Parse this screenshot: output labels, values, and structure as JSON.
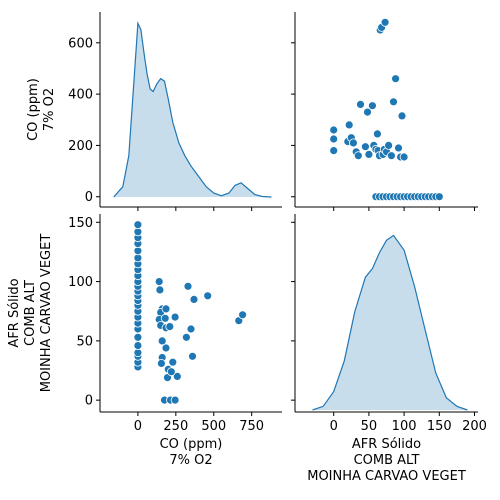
{
  "chart_data": {
    "type": "pairplot",
    "variables": [
      "CO (ppm)\n7% O2",
      "AFR Sólido\nCOMB ALT\nMOINHA CARVAO VEGET"
    ],
    "axes": {
      "co": {
        "range": [
          -250,
          950
        ],
        "ticks": [
          0,
          250,
          500,
          750
        ],
        "tick_labels": [
          "0",
          "",
          "",
          ""
        ]
      },
      "afr": {
        "range": [
          -55,
          205
        ],
        "ticks": [
          0,
          50,
          100,
          150,
          200
        ],
        "tick_labels": [
          "0",
          "50",
          "100",
          "150",
          "200"
        ]
      },
      "co_vertical": {
        "range": [
          -40,
          720
        ],
        "ticks": [
          0,
          200,
          400,
          600
        ],
        "tick_labels": [
          "0",
          "200",
          "400",
          "600"
        ]
      },
      "afr_vertical": {
        "range": [
          -10,
          157
        ],
        "ticks": [
          0,
          50,
          100,
          150
        ],
        "tick_labels": [
          "0",
          "50",
          "100",
          "150"
        ]
      }
    },
    "points": [
      {
        "co": 0,
        "afr": 28
      },
      {
        "co": 0,
        "afr": 32
      },
      {
        "co": 0,
        "afr": 37
      },
      {
        "co": 0,
        "afr": 40
      },
      {
        "co": 0,
        "afr": 46
      },
      {
        "co": 0,
        "afr": 53
      },
      {
        "co": 0,
        "afr": 60
      },
      {
        "co": 0,
        "afr": 65
      },
      {
        "co": 0,
        "afr": 70
      },
      {
        "co": 0,
        "afr": 75
      },
      {
        "co": 0,
        "afr": 80
      },
      {
        "co": 0,
        "afr": 84
      },
      {
        "co": 0,
        "afr": 88
      },
      {
        "co": 0,
        "afr": 92
      },
      {
        "co": 0,
        "afr": 96
      },
      {
        "co": 0,
        "afr": 100
      },
      {
        "co": 0,
        "afr": 105
      },
      {
        "co": 0,
        "afr": 110
      },
      {
        "co": 0,
        "afr": 115
      },
      {
        "co": 0,
        "afr": 120
      },
      {
        "co": 0,
        "afr": 126
      },
      {
        "co": 0,
        "afr": 132
      },
      {
        "co": 0,
        "afr": 137
      },
      {
        "co": 0,
        "afr": 142
      },
      {
        "co": 0,
        "afr": 148
      },
      {
        "co": 175,
        "afr": 0
      },
      {
        "co": 215,
        "afr": 0
      },
      {
        "co": 245,
        "afr": 0
      },
      {
        "co": 140,
        "afr": 100
      },
      {
        "co": 145,
        "afr": 93
      },
      {
        "co": 160,
        "afr": 77
      },
      {
        "co": 150,
        "afr": 74
      },
      {
        "co": 185,
        "afr": 77
      },
      {
        "co": 140,
        "afr": 68
      },
      {
        "co": 180,
        "afr": 69
      },
      {
        "co": 150,
        "afr": 63
      },
      {
        "co": 185,
        "afr": 61
      },
      {
        "co": 210,
        "afr": 62
      },
      {
        "co": 245,
        "afr": 70
      },
      {
        "co": 330,
        "afr": 96
      },
      {
        "co": 370,
        "afr": 85
      },
      {
        "co": 460,
        "afr": 88
      },
      {
        "co": 350,
        "afr": 60
      },
      {
        "co": 320,
        "afr": 53
      },
      {
        "co": 185,
        "afr": 44
      },
      {
        "co": 160,
        "afr": 36
      },
      {
        "co": 155,
        "afr": 31
      },
      {
        "co": 230,
        "afr": 32
      },
      {
        "co": 200,
        "afr": 26
      },
      {
        "co": 195,
        "afr": 19
      },
      {
        "co": 260,
        "afr": 20
      },
      {
        "co": 220,
        "afr": 24
      },
      {
        "co": 360,
        "afr": 37
      },
      {
        "co": 665,
        "afr": 67
      },
      {
        "co": 690,
        "afr": 72
      },
      {
        "co": 160,
        "afr": 50
      }
    ],
    "scatter_co_vs_afr": [
      {
        "afr": 0,
        "co": 180
      },
      {
        "afr": 0,
        "co": 225
      },
      {
        "afr": 0,
        "co": 260
      },
      {
        "afr": 20,
        "co": 215
      },
      {
        "afr": 22,
        "co": 280
      },
      {
        "afr": 25,
        "co": 230
      },
      {
        "afr": 28,
        "co": 210
      },
      {
        "afr": 32,
        "co": 175
      },
      {
        "afr": 35,
        "co": 160
      },
      {
        "afr": 38,
        "co": 360
      },
      {
        "afr": 45,
        "co": 195
      },
      {
        "afr": 48,
        "co": 330
      },
      {
        "afr": 50,
        "co": 165
      },
      {
        "afr": 55,
        "co": 355
      },
      {
        "afr": 57,
        "co": 200
      },
      {
        "afr": 60,
        "co": 185
      },
      {
        "afr": 62,
        "co": 245
      },
      {
        "afr": 63,
        "co": 180
      },
      {
        "afr": 65,
        "co": 160
      },
      {
        "afr": 66,
        "co": 650
      },
      {
        "afr": 68,
        "co": 660
      },
      {
        "afr": 70,
        "co": 165
      },
      {
        "afr": 72,
        "co": 185
      },
      {
        "afr": 73,
        "co": 680
      },
      {
        "afr": 75,
        "co": 175
      },
      {
        "afr": 78,
        "co": 200
      },
      {
        "afr": 82,
        "co": 160
      },
      {
        "afr": 85,
        "co": 370
      },
      {
        "afr": 88,
        "co": 460
      },
      {
        "afr": 92,
        "co": 190
      },
      {
        "afr": 95,
        "co": 155
      },
      {
        "afr": 97,
        "co": 315
      },
      {
        "afr": 100,
        "co": 155
      },
      {
        "afr": 60,
        "co": 0
      },
      {
        "afr": 65,
        "co": 0
      },
      {
        "afr": 70,
        "co": 0
      },
      {
        "afr": 75,
        "co": 0
      },
      {
        "afr": 80,
        "co": 0
      },
      {
        "afr": 85,
        "co": 0
      },
      {
        "afr": 90,
        "co": 0
      },
      {
        "afr": 95,
        "co": 0
      },
      {
        "afr": 100,
        "co": 0
      },
      {
        "afr": 105,
        "co": 0
      },
      {
        "afr": 110,
        "co": 0
      },
      {
        "afr": 115,
        "co": 0
      },
      {
        "afr": 120,
        "co": 0
      },
      {
        "afr": 125,
        "co": 0
      },
      {
        "afr": 130,
        "co": 0
      },
      {
        "afr": 135,
        "co": 0
      },
      {
        "afr": 140,
        "co": 0
      },
      {
        "afr": 145,
        "co": 0
      },
      {
        "afr": 150,
        "co": 0
      }
    ],
    "kde_co": {
      "x": [
        -160,
        -100,
        -60,
        -30,
        0,
        20,
        40,
        60,
        80,
        100,
        125,
        150,
        175,
        200,
        230,
        270,
        310,
        350,
        400,
        450,
        500,
        550,
        600,
        640,
        680,
        720,
        770,
        820,
        880
      ],
      "y": [
        0,
        40,
        160,
        420,
        675,
        650,
        560,
        480,
        420,
        410,
        440,
        460,
        450,
        380,
        290,
        210,
        160,
        120,
        80,
        40,
        15,
        5,
        15,
        45,
        55,
        35,
        10,
        2,
        0
      ]
    },
    "kde_afr": {
      "x": [
        -30,
        -15,
        0,
        15,
        30,
        45,
        55,
        65,
        75,
        85,
        100,
        115,
        130,
        145,
        160,
        175,
        190
      ],
      "y": [
        0,
        3,
        15,
        40,
        80,
        108,
        115,
        128,
        138,
        142,
        130,
        100,
        65,
        30,
        10,
        3,
        0
      ]
    },
    "grid": false,
    "color": "#1f77b4"
  }
}
